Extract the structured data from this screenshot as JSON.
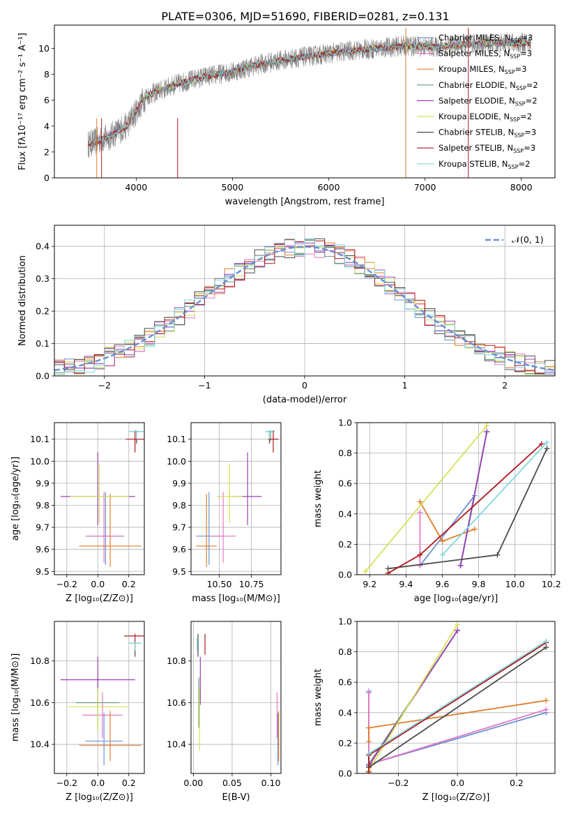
{
  "title": "PLATE=0306, MJD=51690, FIBERID=0281, z=0.131",
  "models": [
    {
      "name": "Chabrier MILES, N",
      "sub": "SSP",
      "tail": "=3",
      "color": "#6b8fd6"
    },
    {
      "name": "Salpeter MILES, N",
      "sub": "SSP",
      "tail": "=3",
      "color": "#e377c2"
    },
    {
      "name": "Kroupa MILES, N",
      "sub": "SSP",
      "tail": "=3",
      "color": "#e07b28"
    },
    {
      "name": "Chabrier ELODIE, N",
      "sub": "SSP",
      "tail": "=2",
      "color": "#6a9a7a"
    },
    {
      "name": "Salpeter ELODIE, N",
      "sub": "SSP",
      "tail": "=2",
      "color": "#9b3fb5"
    },
    {
      "name": "Kroupa ELODIE, N",
      "sub": "SSP",
      "tail": "=2",
      "color": "#d4e157"
    },
    {
      "name": "Chabrier STELIB, N",
      "sub": "SSP",
      "tail": "=3",
      "color": "#4a4a4a"
    },
    {
      "name": "Salpeter STELIB, N",
      "sub": "SSP",
      "tail": "=3",
      "color": "#b0181c"
    },
    {
      "name": "Kroupa STELIB, N",
      "sub": "SSP",
      "tail": "=2",
      "color": "#80d8e0"
    }
  ],
  "chart_data": [
    {
      "id": "spectrum",
      "type": "line",
      "xlabel": "wavelength [Angstrom, rest frame]",
      "ylabel": "Flux [fλ10⁻¹⁷ erg cm⁻² s⁻¹ A⁻¹]",
      "xlim": [
        3150,
        8350
      ],
      "ylim": [
        0,
        11.8
      ],
      "xticks": [
        4000,
        5000,
        6000,
        7000,
        8000
      ],
      "yticks": [
        0,
        2,
        4,
        6,
        8,
        10
      ],
      "continuum": {
        "x": [
          3500,
          3700,
          3900,
          4100,
          4400,
          4700,
          5000,
          5300,
          5600,
          5900,
          6200,
          6500,
          6800,
          7100,
          7400,
          7700,
          8000,
          8100
        ],
        "y": [
          2.6,
          3.1,
          4.0,
          6.3,
          7.2,
          7.8,
          8.2,
          8.8,
          9.2,
          9.5,
          9.8,
          10.0,
          10.2,
          10.1,
          10.3,
          10.4,
          10.4,
          10.4
        ]
      }
    },
    {
      "id": "residuals",
      "type": "bar",
      "xlabel": "(data-model)/error",
      "ylabel": "Normed distribution",
      "xlim": [
        -2.5,
        2.5
      ],
      "ylim": [
        0,
        0.465
      ],
      "xticks": [
        -2,
        -1,
        0,
        1,
        2
      ],
      "yticks": [
        0.0,
        0.1,
        0.2,
        0.3,
        0.4
      ],
      "legend": "𝒩(0, 1)",
      "legend_position": "top-right"
    },
    {
      "id": "age_vs_Z",
      "type": "scatter",
      "xlabel": "Z [log₁₀(Z/Z⊙)]",
      "ylabel": "age  [log₁₀(age/yr)]",
      "xlim": [
        -0.28,
        0.3
      ],
      "ylim": [
        9.485,
        10.175
      ],
      "xticks": [
        -0.2,
        0.0,
        0.2
      ],
      "yticks": [
        9.5,
        9.6,
        9.7,
        9.8,
        9.9,
        10.0,
        10.1
      ],
      "points": [
        {
          "x": 0.05,
          "y": 9.66,
          "xerr": 0.12,
          "ylo": 9.53,
          "yhi": 9.86
        },
        {
          "x": 0.04,
          "y": 9.66,
          "xerr": 0.12,
          "ylo": 9.54,
          "yhi": 9.86
        },
        {
          "x": 0.08,
          "y": 9.615,
          "xerr": 0.2,
          "ylo": 9.52,
          "yhi": 9.85
        },
        {
          "x": 0.25,
          "y": 10.135,
          "xerr": 0.04,
          "ylo": 10.09,
          "yhi": 10.14
        },
        {
          "x": 0.0,
          "y": 9.84,
          "xerr": 0.24,
          "ylo": 9.71,
          "yhi": 10.04
        },
        {
          "x": 0.01,
          "y": 9.84,
          "xerr": 0.19,
          "ylo": 9.72,
          "yhi": 9.99
        },
        {
          "x": 0.25,
          "y": 10.135,
          "xerr": 0.04,
          "ylo": 10.08,
          "yhi": 10.14
        },
        {
          "x": 0.24,
          "y": 10.1,
          "xerr": 0.06,
          "ylo": 10.04,
          "yhi": 10.14
        },
        {
          "x": 0.25,
          "y": 10.135,
          "xerr": 0.05,
          "ylo": 10.1,
          "yhi": 10.14
        }
      ]
    },
    {
      "id": "age_vs_mass",
      "type": "scatter",
      "xlabel": "mass [log₁₀(M/M⊙)]",
      "ylabel": "",
      "xlim": [
        10.28,
        10.98
      ],
      "ylim": [
        9.485,
        10.175
      ],
      "xticks": [
        10.5,
        10.75
      ],
      "yticks": [
        9.5,
        9.6,
        9.7,
        9.8,
        9.9,
        10.0,
        10.1
      ],
      "points": [
        {
          "x": 10.42,
          "y": 9.66,
          "xerr": 0.1,
          "ylo": 9.53,
          "yhi": 9.86
        },
        {
          "x": 10.53,
          "y": 9.66,
          "xerr": 0.1,
          "ylo": 9.54,
          "yhi": 9.86
        },
        {
          "x": 10.4,
          "y": 9.615,
          "xerr": 0.08,
          "ylo": 9.52,
          "yhi": 9.85
        },
        {
          "x": 10.9,
          "y": 10.135,
          "xerr": 0.03,
          "ylo": 10.09,
          "yhi": 10.14
        },
        {
          "x": 10.72,
          "y": 9.84,
          "xerr": 0.11,
          "ylo": 9.71,
          "yhi": 10.04
        },
        {
          "x": 10.58,
          "y": 9.84,
          "xerr": 0.1,
          "ylo": 9.72,
          "yhi": 9.99
        },
        {
          "x": 10.89,
          "y": 10.135,
          "xerr": 0.03,
          "ylo": 10.08,
          "yhi": 10.14
        },
        {
          "x": 10.92,
          "y": 10.1,
          "xerr": 0.04,
          "ylo": 10.04,
          "yhi": 10.14
        },
        {
          "x": 10.89,
          "y": 10.135,
          "xerr": 0.03,
          "ylo": 10.1,
          "yhi": 10.14
        }
      ]
    },
    {
      "id": "weight_vs_age",
      "type": "line",
      "xlabel": "age  [log₁₀(age/yr)]",
      "ylabel": "mass weight",
      "xlim": [
        9.13,
        10.22
      ],
      "ylim": [
        0,
        1.0
      ],
      "xticks": [
        9.2,
        9.4,
        9.6,
        9.8,
        10.0,
        10.2
      ],
      "yticks": [
        0.0,
        0.2,
        0.4,
        0.6,
        0.8,
        1.0
      ],
      "series": [
        {
          "x": [
            9.477,
            9.778,
            9.7,
            9.845
          ],
          "y": [
            0.06,
            0.52,
            0.06,
            0.94
          ]
        },
        {
          "x": [
            9.477,
            9.477
          ],
          "y": [
            0.06,
            0.41
          ]
        },
        {
          "x": [
            9.477,
            9.6,
            9.778
          ],
          "y": [
            0.48,
            0.22,
            0.3
          ]
        },
        {
          "x": [
            9.7,
            9.845
          ],
          "y": [
            0.06,
            0.94
          ]
        },
        {
          "x": [
            9.7,
            9.845
          ],
          "y": [
            0.06,
            0.94
          ]
        },
        {
          "x": [
            9.176,
            9.845
          ],
          "y": [
            0.02,
            0.98
          ]
        },
        {
          "x": [
            9.301,
            9.903,
            10.176
          ],
          "y": [
            0.04,
            0.13,
            0.83
          ]
        },
        {
          "x": [
            9.301,
            9.477,
            10.146
          ],
          "y": [
            0.01,
            0.13,
            0.86
          ]
        },
        {
          "x": [
            9.6,
            10.176
          ],
          "y": [
            0.13,
            0.87
          ]
        }
      ]
    },
    {
      "id": "mass_vs_Z",
      "type": "scatter",
      "xlabel": "Z [log₁₀(Z/Z⊙)]",
      "ylabel": "mass [log₁₀(M/M⊙)]",
      "xlim": [
        -0.28,
        0.3
      ],
      "ylim": [
        10.26,
        10.99
      ],
      "xticks": [
        -0.2,
        0.0,
        0.2
      ],
      "yticks": [
        10.4,
        10.6,
        10.8
      ],
      "points": [
        {
          "x": 0.04,
          "y": 10.415,
          "xerr": 0.12,
          "ylo": 10.3,
          "yhi": 10.55
        },
        {
          "x": 0.03,
          "y": 10.54,
          "xerr": 0.13,
          "ylo": 10.43,
          "yhi": 10.65
        },
        {
          "x": 0.08,
          "y": 10.395,
          "xerr": 0.2,
          "ylo": 10.32,
          "yhi": 10.56
        },
        {
          "x": 0.0,
          "y": 10.6,
          "xerr": 0.14,
          "ylo": 10.48,
          "yhi": 10.72
        },
        {
          "x": 0.0,
          "y": 10.71,
          "xerr": 0.24,
          "ylo": 10.59,
          "yhi": 10.82
        },
        {
          "x": 0.0,
          "y": 10.58,
          "xerr": 0.2,
          "ylo": 10.46,
          "yhi": 10.67
        },
        {
          "x": 0.24,
          "y": 10.885,
          "xerr": 0.04,
          "ylo": 10.82,
          "yhi": 10.89
        },
        {
          "x": 0.24,
          "y": 10.92,
          "xerr": 0.07,
          "ylo": 10.86,
          "yhi": 10.93
        },
        {
          "x": 0.24,
          "y": 10.885,
          "xerr": 0.04,
          "ylo": 10.85,
          "yhi": 10.89
        }
      ]
    },
    {
      "id": "mass_vs_ebv",
      "type": "scatter",
      "xlabel": "E(B-V)",
      "ylabel": "",
      "xlim": [
        -0.003,
        0.113
      ],
      "ylim": [
        10.26,
        10.99
      ],
      "xticks": [
        0.0,
        0.05,
        0.1
      ],
      "yticks": [
        10.4,
        10.6,
        10.8
      ],
      "points": [
        {
          "x": 0.109,
          "y": 10.415,
          "xerr": 0.0,
          "ylo": 10.3,
          "yhi": 10.55
        },
        {
          "x": 0.108,
          "y": 10.54,
          "xerr": 0.0,
          "ylo": 10.43,
          "yhi": 10.65
        },
        {
          "x": 0.11,
          "y": 10.395,
          "xerr": 0.0,
          "ylo": 10.32,
          "yhi": 10.56
        },
        {
          "x": 0.007,
          "y": 10.6,
          "xerr": 0.0,
          "ylo": 10.48,
          "yhi": 10.72
        },
        {
          "x": 0.009,
          "y": 10.71,
          "xerr": 0.0,
          "ylo": 10.59,
          "yhi": 10.82
        },
        {
          "x": 0.008,
          "y": 10.58,
          "xerr": 0.0,
          "ylo": 10.37,
          "yhi": 10.67
        },
        {
          "x": 0.006,
          "y": 10.885,
          "xerr": 0.0,
          "ylo": 10.82,
          "yhi": 10.93
        },
        {
          "x": 0.015,
          "y": 10.92,
          "xerr": 0.0,
          "ylo": 10.83,
          "yhi": 10.93
        },
        {
          "x": 0.005,
          "y": 10.885,
          "xerr": 0.0,
          "ylo": 10.85,
          "yhi": 10.91
        }
      ]
    },
    {
      "id": "weight_vs_Z",
      "type": "line",
      "xlabel": "Z [log₁₀(Z/Z⊙)]",
      "ylabel": "mass weight",
      "xlim": [
        -0.34,
        0.33
      ],
      "ylim": [
        0,
        1.0
      ],
      "xticks": [
        -0.2,
        0.0,
        0.2
      ],
      "yticks": [
        0.0,
        0.2,
        0.4,
        0.6,
        0.8,
        1.0
      ],
      "series": [
        {
          "x": [
            -0.3,
            -0.3,
            0.3
          ],
          "y": [
            0.54,
            0.06,
            0.4
          ]
        },
        {
          "x": [
            -0.3,
            -0.3,
            0.3
          ],
          "y": [
            0.53,
            0.06,
            0.42
          ]
        },
        {
          "x": [
            -0.3,
            -0.3,
            0.3
          ],
          "y": [
            0.21,
            0.3,
            0.48
          ]
        },
        {
          "x": [
            -0.3,
            0.0
          ],
          "y": [
            0.06,
            0.94
          ]
        },
        {
          "x": [
            -0.3,
            0.0
          ],
          "y": [
            0.05,
            0.94
          ]
        },
        {
          "x": [
            -0.3,
            0.0
          ],
          "y": [
            0.02,
            0.98
          ]
        },
        {
          "x": [
            -0.3,
            -0.3,
            0.3
          ],
          "y": [
            0.13,
            0.04,
            0.83
          ]
        },
        {
          "x": [
            -0.3,
            -0.3,
            0.3
          ],
          "y": [
            0.01,
            0.12,
            0.86
          ]
        },
        {
          "x": [
            -0.3,
            0.3
          ],
          "y": [
            0.13,
            0.87
          ]
        }
      ]
    }
  ]
}
